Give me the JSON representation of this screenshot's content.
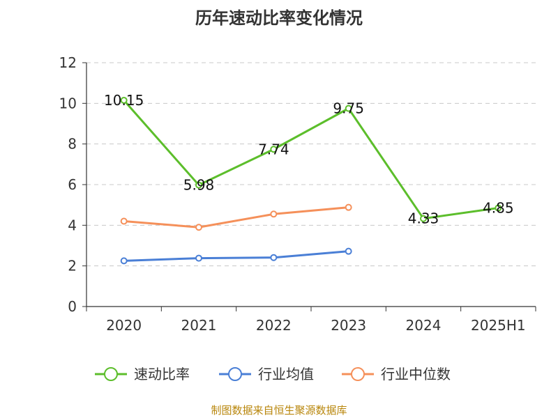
{
  "chart_data": {
    "type": "line",
    "title": "历年速动比率变化情况",
    "categories": [
      "2020",
      "2021",
      "2022",
      "2023",
      "2024",
      "2025H1"
    ],
    "ylim": [
      0,
      12
    ],
    "yticks": [
      0,
      2,
      4,
      6,
      8,
      10,
      12
    ],
    "grid": true,
    "legend_position": "bottom",
    "series": [
      {
        "name": "速动比率",
        "values": [
          10.15,
          5.98,
          7.74,
          9.75,
          4.33,
          4.85
        ],
        "color": "#5cbe2b",
        "labels": true
      },
      {
        "name": "行业均值",
        "values": [
          2.25,
          2.38,
          2.41,
          2.72,
          null,
          null
        ],
        "color": "#4a7fd6",
        "labels": false
      },
      {
        "name": "行业中位数",
        "values": [
          4.2,
          3.9,
          4.55,
          4.88,
          null,
          null
        ],
        "color": "#f5905a",
        "labels": false
      }
    ],
    "data_labels": [
      "10.15",
      "5.98",
      "7.74",
      "9.75",
      "4.33",
      "4.85"
    ]
  },
  "source_text": "制图数据来自恒生聚源数据库"
}
